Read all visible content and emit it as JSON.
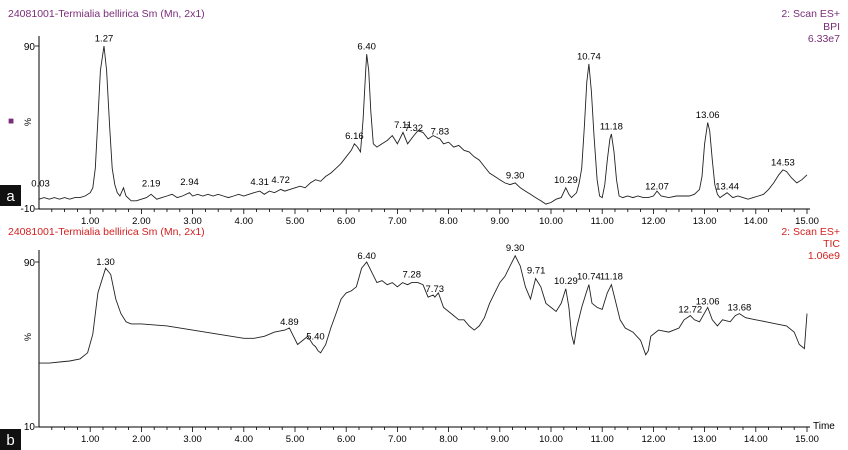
{
  "panels": [
    {
      "letter": "a",
      "title": "24081001-Termialia bellirica Sm (Mn, 2x1)",
      "scan": "2: Scan ES+",
      "trace_type": "BPI",
      "intensity": "6.33e7",
      "color": "#7a2d7a",
      "marker": "■",
      "percent_label": "%"
    },
    {
      "letter": "b",
      "title": "24081001-Termialia bellirica Sm (Mn, 2x1)",
      "scan": "2: Scan ES+",
      "trace_type": "TIC",
      "intensity": "1.06e9",
      "color": "#d42020",
      "percent_label": "%",
      "x_axis_title": "Time"
    }
  ],
  "chart_data": [
    {
      "type": "line",
      "title": "24081001-Termialia bellirica Sm (Mn, 2x1)",
      "series_name": "BPI",
      "xlabel": "",
      "ylabel": "%",
      "xlim": [
        0,
        15
      ],
      "ylim": [
        -10,
        100
      ],
      "x_ticks": [
        "1.00",
        "2.00",
        "3.00",
        "4.00",
        "5.00",
        "6.00",
        "7.00",
        "8.00",
        "9.00",
        "10.00",
        "11.00",
        "12.00",
        "13.00",
        "14.00",
        "15.00"
      ],
      "y_ticks": [
        "90",
        "-10"
      ],
      "grid": false,
      "peak_labels": [
        {
          "x": 0.03,
          "y": 2,
          "text": "0.03"
        },
        {
          "x": 1.27,
          "y": 91,
          "text": "1.27"
        },
        {
          "x": 2.19,
          "y": 2,
          "text": "2.19"
        },
        {
          "x": 2.94,
          "y": 3,
          "text": "2.94"
        },
        {
          "x": 4.31,
          "y": 3,
          "text": "4.31"
        },
        {
          "x": 4.72,
          "y": 4,
          "text": "4.72"
        },
        {
          "x": 6.16,
          "y": 31,
          "text": "6.16"
        },
        {
          "x": 6.4,
          "y": 86,
          "text": "6.40"
        },
        {
          "x": 7.11,
          "y": 38,
          "text": "7.11"
        },
        {
          "x": 7.32,
          "y": 36,
          "text": "7.32"
        },
        {
          "x": 7.83,
          "y": 34,
          "text": "7.83"
        },
        {
          "x": 9.3,
          "y": 7,
          "text": "9.30"
        },
        {
          "x": 10.29,
          "y": 4,
          "text": "10.29"
        },
        {
          "x": 10.74,
          "y": 80,
          "text": "10.74"
        },
        {
          "x": 11.18,
          "y": 37,
          "text": "11.18"
        },
        {
          "x": 12.07,
          "y": 0,
          "text": "12.07"
        },
        {
          "x": 13.06,
          "y": 44,
          "text": "13.06"
        },
        {
          "x": 13.44,
          "y": 0,
          "text": "13.44"
        },
        {
          "x": 14.53,
          "y": 15,
          "text": "14.53"
        }
      ],
      "points": [
        [
          0.0,
          -4
        ],
        [
          0.1,
          -3
        ],
        [
          0.2,
          -4
        ],
        [
          0.3,
          -3
        ],
        [
          0.4,
          -4
        ],
        [
          0.5,
          -3
        ],
        [
          0.6,
          -4
        ],
        [
          0.7,
          -3
        ],
        [
          0.8,
          -3
        ],
        [
          0.9,
          -2
        ],
        [
          1.0,
          0
        ],
        [
          1.05,
          3
        ],
        [
          1.1,
          15
        ],
        [
          1.15,
          45
        ],
        [
          1.2,
          75
        ],
        [
          1.27,
          90
        ],
        [
          1.32,
          75
        ],
        [
          1.38,
          40
        ],
        [
          1.43,
          15
        ],
        [
          1.48,
          5
        ],
        [
          1.53,
          0
        ],
        [
          1.58,
          -2
        ],
        [
          1.65,
          3
        ],
        [
          1.7,
          -2
        ],
        [
          1.8,
          -5
        ],
        [
          1.9,
          -5
        ],
        [
          2.0,
          -4
        ],
        [
          2.1,
          -3
        ],
        [
          2.19,
          -1
        ],
        [
          2.3,
          -4
        ],
        [
          2.4,
          -3
        ],
        [
          2.5,
          -2
        ],
        [
          2.6,
          -1
        ],
        [
          2.7,
          -3
        ],
        [
          2.8,
          -2
        ],
        [
          2.94,
          0
        ],
        [
          3.0,
          -2
        ],
        [
          3.1,
          -1
        ],
        [
          3.2,
          -2
        ],
        [
          3.3,
          -1
        ],
        [
          3.4,
          -2
        ],
        [
          3.5,
          -1
        ],
        [
          3.6,
          -2
        ],
        [
          3.7,
          -3
        ],
        [
          3.8,
          -2
        ],
        [
          3.9,
          -1
        ],
        [
          4.0,
          -2
        ],
        [
          4.1,
          -1
        ],
        [
          4.2,
          0
        ],
        [
          4.31,
          1
        ],
        [
          4.4,
          -1
        ],
        [
          4.5,
          1
        ],
        [
          4.6,
          0
        ],
        [
          4.72,
          2
        ],
        [
          4.8,
          1
        ],
        [
          4.9,
          2
        ],
        [
          5.0,
          3
        ],
        [
          5.1,
          4
        ],
        [
          5.2,
          3
        ],
        [
          5.3,
          6
        ],
        [
          5.4,
          8
        ],
        [
          5.5,
          7
        ],
        [
          5.6,
          10
        ],
        [
          5.7,
          12
        ],
        [
          5.8,
          15
        ],
        [
          5.9,
          18
        ],
        [
          6.0,
          22
        ],
        [
          6.1,
          26
        ],
        [
          6.16,
          30
        ],
        [
          6.22,
          28
        ],
        [
          6.28,
          25
        ],
        [
          6.33,
          45
        ],
        [
          6.38,
          75
        ],
        [
          6.4,
          85
        ],
        [
          6.44,
          75
        ],
        [
          6.48,
          50
        ],
        [
          6.53,
          30
        ],
        [
          6.6,
          28
        ],
        [
          6.7,
          30
        ],
        [
          6.8,
          32
        ],
        [
          6.9,
          35
        ],
        [
          7.0,
          30
        ],
        [
          7.11,
          37
        ],
        [
          7.2,
          30
        ],
        [
          7.32,
          35
        ],
        [
          7.4,
          38
        ],
        [
          7.5,
          37
        ],
        [
          7.6,
          33
        ],
        [
          7.7,
          35
        ],
        [
          7.83,
          33
        ],
        [
          7.9,
          30
        ],
        [
          8.0,
          31
        ],
        [
          8.1,
          28
        ],
        [
          8.2,
          29
        ],
        [
          8.3,
          26
        ],
        [
          8.4,
          25
        ],
        [
          8.5,
          22
        ],
        [
          8.6,
          20
        ],
        [
          8.7,
          16
        ],
        [
          8.8,
          12
        ],
        [
          8.9,
          10
        ],
        [
          9.0,
          8
        ],
        [
          9.1,
          6
        ],
        [
          9.2,
          5
        ],
        [
          9.3,
          6
        ],
        [
          9.4,
          3
        ],
        [
          9.5,
          1
        ],
        [
          9.6,
          -1
        ],
        [
          9.7,
          -3
        ],
        [
          9.8,
          -5
        ],
        [
          9.9,
          -7
        ],
        [
          10.0,
          -6
        ],
        [
          10.1,
          -4
        ],
        [
          10.2,
          -3
        ],
        [
          10.29,
          3
        ],
        [
          10.35,
          -1
        ],
        [
          10.4,
          -3
        ],
        [
          10.5,
          0
        ],
        [
          10.55,
          6
        ],
        [
          10.6,
          15
        ],
        [
          10.65,
          40
        ],
        [
          10.7,
          68
        ],
        [
          10.74,
          79
        ],
        [
          10.79,
          62
        ],
        [
          10.84,
          35
        ],
        [
          10.9,
          8
        ],
        [
          10.95,
          -2
        ],
        [
          11.0,
          -3
        ],
        [
          11.05,
          5
        ],
        [
          11.1,
          20
        ],
        [
          11.15,
          33
        ],
        [
          11.18,
          36
        ],
        [
          11.23,
          25
        ],
        [
          11.28,
          8
        ],
        [
          11.33,
          -2
        ],
        [
          11.4,
          -3
        ],
        [
          11.5,
          -2
        ],
        [
          11.6,
          -3
        ],
        [
          11.7,
          -2
        ],
        [
          11.8,
          -3
        ],
        [
          11.9,
          -3
        ],
        [
          12.0,
          -2
        ],
        [
          12.07,
          1
        ],
        [
          12.15,
          -2
        ],
        [
          12.3,
          -3
        ],
        [
          12.45,
          -2
        ],
        [
          12.6,
          -2
        ],
        [
          12.7,
          -2
        ],
        [
          12.8,
          -1
        ],
        [
          12.9,
          2
        ],
        [
          12.95,
          10
        ],
        [
          13.0,
          30
        ],
        [
          13.06,
          43
        ],
        [
          13.1,
          38
        ],
        [
          13.15,
          20
        ],
        [
          13.2,
          5
        ],
        [
          13.25,
          -1
        ],
        [
          13.3,
          -3
        ],
        [
          13.44,
          0
        ],
        [
          13.55,
          -3
        ],
        [
          13.65,
          -2
        ],
        [
          13.75,
          -3
        ],
        [
          13.85,
          -4
        ],
        [
          13.95,
          -3
        ],
        [
          14.05,
          -2
        ],
        [
          14.15,
          -1
        ],
        [
          14.25,
          2
        ],
        [
          14.35,
          6
        ],
        [
          14.45,
          11
        ],
        [
          14.53,
          14
        ],
        [
          14.6,
          13
        ],
        [
          14.7,
          9
        ],
        [
          14.8,
          6
        ],
        [
          14.9,
          8
        ],
        [
          15.0,
          11
        ]
      ]
    },
    {
      "type": "line",
      "title": "24081001-Termialia bellirica Sm (Mn, 2x1)",
      "series_name": "TIC",
      "xlabel": "Time",
      "ylabel": "%",
      "xlim": [
        0,
        15
      ],
      "ylim": [
        10,
        100
      ],
      "x_ticks": [
        "1.00",
        "2.00",
        "3.00",
        "4.00",
        "5.00",
        "6.00",
        "7.00",
        "8.00",
        "9.00",
        "10.00",
        "11.00",
        "12.00",
        "13.00",
        "14.00",
        "15.00"
      ],
      "y_ticks": [
        "90",
        "10"
      ],
      "grid": false,
      "peak_labels": [
        {
          "x": 1.3,
          "y": 87,
          "text": "1.30"
        },
        {
          "x": 4.89,
          "y": 58,
          "text": "4.89"
        },
        {
          "x": 5.4,
          "y": 51,
          "text": "5.40"
        },
        {
          "x": 6.4,
          "y": 90,
          "text": "6.40"
        },
        {
          "x": 7.28,
          "y": 81,
          "text": "7.28"
        },
        {
          "x": 7.73,
          "y": 74,
          "text": "7.73"
        },
        {
          "x": 9.3,
          "y": 94,
          "text": "9.30"
        },
        {
          "x": 9.71,
          "y": 83,
          "text": "9.71"
        },
        {
          "x": 10.29,
          "y": 78,
          "text": "10.29"
        },
        {
          "x": 10.74,
          "y": 80,
          "text": "10.74"
        },
        {
          "x": 11.18,
          "y": 80,
          "text": "11.18"
        },
        {
          "x": 12.72,
          "y": 64,
          "text": "12.72"
        },
        {
          "x": 13.06,
          "y": 68,
          "text": "13.06"
        },
        {
          "x": 13.68,
          "y": 65,
          "text": "13.68"
        }
      ],
      "points": [
        [
          0.0,
          41
        ],
        [
          0.2,
          41
        ],
        [
          0.4,
          41.5
        ],
        [
          0.6,
          42
        ],
        [
          0.8,
          43
        ],
        [
          0.95,
          46
        ],
        [
          1.05,
          55
        ],
        [
          1.15,
          75
        ],
        [
          1.3,
          87
        ],
        [
          1.4,
          84
        ],
        [
          1.5,
          72
        ],
        [
          1.6,
          65
        ],
        [
          1.7,
          61
        ],
        [
          1.8,
          60
        ],
        [
          2.0,
          60
        ],
        [
          2.5,
          59
        ],
        [
          3.0,
          57
        ],
        [
          3.5,
          55
        ],
        [
          4.0,
          53
        ],
        [
          4.2,
          53
        ],
        [
          4.4,
          54
        ],
        [
          4.6,
          56
        ],
        [
          4.8,
          57
        ],
        [
          4.89,
          58
        ],
        [
          4.95,
          55
        ],
        [
          5.05,
          50
        ],
        [
          5.15,
          52
        ],
        [
          5.25,
          54
        ],
        [
          5.35,
          50
        ],
        [
          5.4,
          49
        ],
        [
          5.45,
          47
        ],
        [
          5.5,
          46
        ],
        [
          5.6,
          50
        ],
        [
          5.7,
          58
        ],
        [
          5.8,
          65
        ],
        [
          5.9,
          72
        ],
        [
          6.0,
          75
        ],
        [
          6.1,
          76
        ],
        [
          6.2,
          78
        ],
        [
          6.3,
          87
        ],
        [
          6.4,
          90
        ],
        [
          6.5,
          85
        ],
        [
          6.6,
          80
        ],
        [
          6.7,
          81
        ],
        [
          6.8,
          79
        ],
        [
          6.9,
          80
        ],
        [
          7.0,
          78
        ],
        [
          7.1,
          80
        ],
        [
          7.2,
          79
        ],
        [
          7.28,
          80
        ],
        [
          7.4,
          80
        ],
        [
          7.5,
          79
        ],
        [
          7.6,
          73
        ],
        [
          7.7,
          74
        ],
        [
          7.73,
          73
        ],
        [
          7.8,
          75
        ],
        [
          7.9,
          68
        ],
        [
          8.0,
          66
        ],
        [
          8.1,
          64
        ],
        [
          8.2,
          62
        ],
        [
          8.3,
          62
        ],
        [
          8.4,
          59
        ],
        [
          8.5,
          57
        ],
        [
          8.6,
          59
        ],
        [
          8.7,
          63
        ],
        [
          8.8,
          70
        ],
        [
          8.9,
          75
        ],
        [
          9.0,
          80
        ],
        [
          9.1,
          83
        ],
        [
          9.2,
          88
        ],
        [
          9.3,
          93
        ],
        [
          9.4,
          88
        ],
        [
          9.5,
          78
        ],
        [
          9.6,
          72
        ],
        [
          9.7,
          82
        ],
        [
          9.8,
          78
        ],
        [
          9.9,
          70
        ],
        [
          10.0,
          68
        ],
        [
          10.1,
          66
        ],
        [
          10.2,
          70
        ],
        [
          10.29,
          77
        ],
        [
          10.35,
          68
        ],
        [
          10.4,
          55
        ],
        [
          10.45,
          50
        ],
        [
          10.5,
          58
        ],
        [
          10.6,
          68
        ],
        [
          10.7,
          76
        ],
        [
          10.74,
          79
        ],
        [
          10.8,
          70
        ],
        [
          10.9,
          68
        ],
        [
          11.0,
          67
        ],
        [
          11.1,
          75
        ],
        [
          11.18,
          79
        ],
        [
          11.25,
          72
        ],
        [
          11.35,
          62
        ],
        [
          11.45,
          58
        ],
        [
          11.6,
          56
        ],
        [
          11.75,
          52
        ],
        [
          11.85,
          45
        ],
        [
          11.9,
          47
        ],
        [
          11.95,
          54
        ],
        [
          12.1,
          57
        ],
        [
          12.3,
          56
        ],
        [
          12.5,
          58
        ],
        [
          12.6,
          62
        ],
        [
          12.72,
          64
        ],
        [
          12.8,
          62
        ],
        [
          12.9,
          61
        ],
        [
          13.06,
          68
        ],
        [
          13.15,
          62
        ],
        [
          13.25,
          59
        ],
        [
          13.35,
          62
        ],
        [
          13.5,
          61
        ],
        [
          13.6,
          64
        ],
        [
          13.68,
          65
        ],
        [
          13.8,
          63
        ],
        [
          14.0,
          62
        ],
        [
          14.2,
          61
        ],
        [
          14.4,
          60
        ],
        [
          14.6,
          59
        ],
        [
          14.75,
          56
        ],
        [
          14.85,
          50
        ],
        [
          14.95,
          48
        ],
        [
          15.0,
          65
        ]
      ]
    }
  ]
}
